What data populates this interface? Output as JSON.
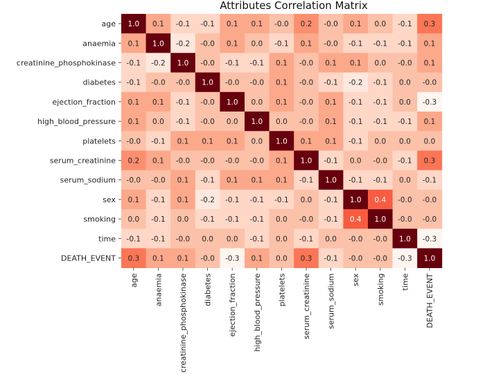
{
  "chart_data": {
    "type": "heatmap",
    "title": "Attributes Correlation Matrix",
    "xlabel": "",
    "ylabel": "",
    "labels": [
      "age",
      "anaemia",
      "creatinine_phosphokinase",
      "diabetes",
      "ejection_fraction",
      "high_blood_pressure",
      "platelets",
      "serum_creatinine",
      "serum_sodium",
      "sex",
      "smoking",
      "time",
      "DEATH_EVENT"
    ],
    "value_range": [
      -0.3,
      1.0
    ],
    "colormap": "Reds",
    "values": [
      [
        "1.0",
        "0.1",
        "-0.1",
        "-0.1",
        "0.1",
        "0.1",
        "-0.0",
        "0.2",
        "-0.0",
        "0.1",
        "0.0",
        "-0.1",
        "0.3"
      ],
      [
        "0.1",
        "1.0",
        "-0.2",
        "-0.0",
        "0.1",
        "0.0",
        "-0.1",
        "0.1",
        "-0.0",
        "-0.1",
        "-0.1",
        "-0.1",
        "0.1"
      ],
      [
        "-0.1",
        "-0.2",
        "1.0",
        "-0.0",
        "-0.1",
        "-0.1",
        "0.1",
        "-0.0",
        "0.1",
        "0.1",
        "0.0",
        "-0.0",
        "0.1"
      ],
      [
        "-0.1",
        "-0.0",
        "-0.0",
        "1.0",
        "-0.0",
        "-0.0",
        "0.1",
        "-0.0",
        "-0.1",
        "-0.2",
        "-0.1",
        "0.0",
        "-0.0"
      ],
      [
        "0.1",
        "0.1",
        "-0.1",
        "-0.0",
        "1.0",
        "0.0",
        "0.1",
        "-0.0",
        "0.1",
        "-0.1",
        "-0.1",
        "0.0",
        "-0.3"
      ],
      [
        "0.1",
        "0.0",
        "-0.1",
        "-0.0",
        "0.0",
        "1.0",
        "0.0",
        "-0.0",
        "0.1",
        "-0.1",
        "-0.1",
        "-0.1",
        "0.1"
      ],
      [
        "-0.0",
        "-0.1",
        "0.1",
        "0.1",
        "0.1",
        "0.0",
        "1.0",
        "0.1",
        "0.1",
        "-0.1",
        "0.0",
        "0.0",
        "0.0"
      ],
      [
        "0.2",
        "0.1",
        "-0.0",
        "-0.0",
        "-0.0",
        "-0.0",
        "0.1",
        "1.0",
        "-0.1",
        "0.0",
        "-0.0",
        "-0.1",
        "0.3"
      ],
      [
        "-0.0",
        "-0.0",
        "0.1",
        "-0.1",
        "0.1",
        "0.1",
        "0.1",
        "-0.1",
        "1.0",
        "-0.1",
        "-0.1",
        "0.0",
        "-0.1"
      ],
      [
        "0.1",
        "-0.1",
        "0.1",
        "-0.2",
        "-0.1",
        "-0.1",
        "-0.1",
        "0.0",
        "-0.1",
        "1.0",
        "0.4",
        "-0.0",
        "-0.0"
      ],
      [
        "0.0",
        "-0.1",
        "0.0",
        "-0.1",
        "-0.1",
        "-0.1",
        "0.0",
        "-0.0",
        "-0.1",
        "0.4",
        "1.0",
        "-0.0",
        "-0.0"
      ],
      [
        "-0.1",
        "-0.1",
        "-0.0",
        "0.0",
        "0.0",
        "-0.1",
        "0.0",
        "-0.1",
        "0.0",
        "-0.0",
        "-0.0",
        "1.0",
        "-0.3"
      ],
      [
        "0.3",
        "0.1",
        "0.1",
        "-0.0",
        "-0.3",
        "0.1",
        "0.0",
        "0.3",
        "-0.1",
        "-0.0",
        "-0.0",
        "-0.3",
        "1.0"
      ]
    ],
    "colorbar": false,
    "annotations": true
  }
}
